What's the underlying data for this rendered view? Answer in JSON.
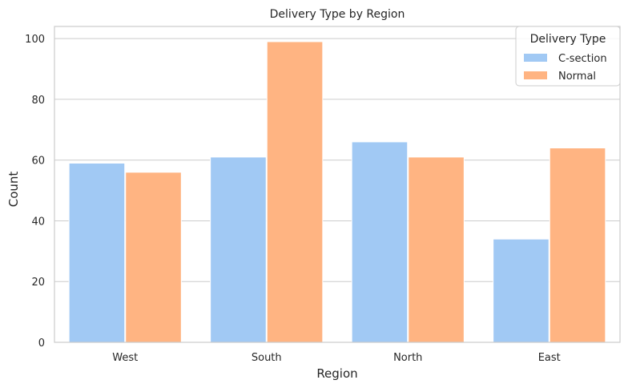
{
  "chart_data": {
    "type": "bar",
    "title": "Delivery Type by Region",
    "xlabel": "Region",
    "ylabel": "Count",
    "categories": [
      "West",
      "South",
      "North",
      "East"
    ],
    "series": [
      {
        "name": "C-section",
        "values": [
          59,
          61,
          66,
          34
        ],
        "color": "#a1c9f4"
      },
      {
        "name": "Normal",
        "values": [
          56,
          99,
          61,
          64
        ],
        "color": "#ffb482"
      }
    ],
    "ylim": [
      0,
      104
    ],
    "yticks": [
      0,
      20,
      40,
      60,
      80,
      100
    ],
    "grid": "horizontal",
    "legend": {
      "title": "Delivery Type",
      "placement": "top-right"
    }
  }
}
